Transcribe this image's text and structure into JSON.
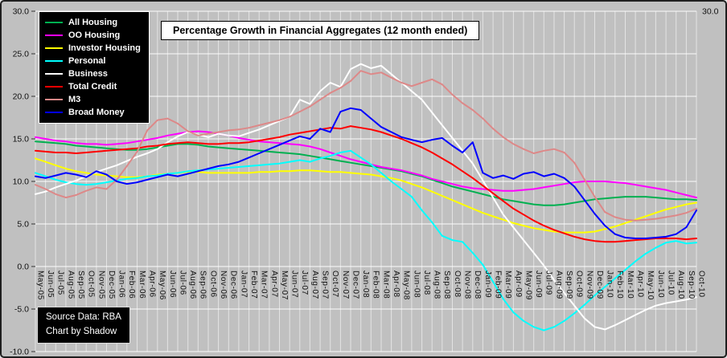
{
  "theme": {
    "background": "#c0c0c0",
    "frame_border": "#1f1f1f",
    "gridline": "#ffffff",
    "axis_text": "#111111",
    "legend_bg": "#000000",
    "legend_text": "#ffffff",
    "title_bg": "#ffffff",
    "title_text": "#000000",
    "title_border": "#000000",
    "source_bg": "#000000",
    "source_text": "#ffffff"
  },
  "source_box": {
    "line1": "Source Data: RBA",
    "line2": "Chart by Shadow"
  },
  "chart_data": {
    "type": "line",
    "title": "Percentage Growth in Financial Aggregates (12 month ended)",
    "ylabel": "",
    "xlabel": "",
    "ylim": [
      -10,
      30
    ],
    "ytick_values": [
      30,
      25,
      20,
      15,
      10,
      5,
      0,
      -5,
      -10
    ],
    "ytick_labels": [
      "30.0",
      "25.0",
      "20.0",
      "15.0",
      "10.0",
      "5.0",
      "0.0",
      "-5.0",
      "-10.0"
    ],
    "right_axis_top_label": "30.0",
    "grid": true,
    "legend_position": "top-left",
    "x": [
      "May-05",
      "Jun-05",
      "Jul-05",
      "Aug-05",
      "Sep-05",
      "Oct-05",
      "Nov-05",
      "Dec-05",
      "Jan-06",
      "Feb-06",
      "Mar-06",
      "Apr-06",
      "May-06",
      "Jun-06",
      "Jul-06",
      "Aug-06",
      "Sep-06",
      "Oct-06",
      "Nov-06",
      "Dec-06",
      "Jan-07",
      "Feb-07",
      "Mar-07",
      "Apr-07",
      "May-07",
      "Jun-07",
      "Jul-07",
      "Aug-07",
      "Sep-07",
      "Oct-07",
      "Nov-07",
      "Dec-07",
      "Jan-08",
      "Feb-08",
      "Mar-08",
      "Apr-08",
      "May-08",
      "Jun-08",
      "Jul-08",
      "Aug-08",
      "Sep-08",
      "Oct-08",
      "Nov-08",
      "Dec-08",
      "Jan-09",
      "Feb-09",
      "Mar-09",
      "Apr-09",
      "May-09",
      "Jun-09",
      "Jul-09",
      "Aug-09",
      "Sep-09",
      "Oct-09",
      "Nov-09",
      "Dec-09",
      "Jan-10",
      "Feb-10",
      "Mar-10",
      "Apr-10",
      "May-10",
      "Jun-10",
      "Jul-10",
      "Aug-10",
      "Sep-10",
      "Oct-10"
    ],
    "series": [
      {
        "name": "All Housing",
        "color": "#00b050",
        "values": [
          14.7,
          14.6,
          14.5,
          14.4,
          14.2,
          14.1,
          14.0,
          13.9,
          13.8,
          13.7,
          13.7,
          13.8,
          14.0,
          14.2,
          14.4,
          14.4,
          14.3,
          14.1,
          14.0,
          13.9,
          13.8,
          13.7,
          13.6,
          13.5,
          13.4,
          13.3,
          13.2,
          13.0,
          12.8,
          12.6,
          12.4,
          12.2,
          12.0,
          11.8,
          11.6,
          11.4,
          11.2,
          10.9,
          10.6,
          10.2,
          9.8,
          9.4,
          9.1,
          8.8,
          8.5,
          8.2,
          7.9,
          7.7,
          7.5,
          7.3,
          7.2,
          7.2,
          7.3,
          7.5,
          7.7,
          7.9,
          8.0,
          8.1,
          8.2,
          8.2,
          8.2,
          8.1,
          8.0,
          7.9,
          7.9,
          7.8
        ]
      },
      {
        "name": "OO Housing",
        "color": "#ff00ff",
        "values": [
          15.2,
          15.0,
          14.8,
          14.7,
          14.5,
          14.4,
          14.4,
          14.3,
          14.4,
          14.5,
          14.7,
          14.9,
          15.1,
          15.4,
          15.6,
          15.8,
          15.9,
          15.8,
          15.6,
          15.4,
          15.1,
          14.9,
          14.7,
          14.6,
          14.5,
          14.4,
          14.3,
          14.1,
          13.8,
          13.4,
          13.0,
          12.6,
          12.3,
          12.0,
          11.7,
          11.5,
          11.3,
          11.0,
          10.7,
          10.3,
          10.0,
          9.7,
          9.4,
          9.2,
          9.1,
          9.0,
          8.9,
          8.9,
          9.0,
          9.1,
          9.3,
          9.5,
          9.7,
          9.9,
          10.0,
          10.0,
          10.0,
          9.9,
          9.8,
          9.6,
          9.4,
          9.2,
          9.0,
          8.7,
          8.4,
          8.1
        ]
      },
      {
        "name": "Investor Housing",
        "color": "#ffff00",
        "values": [
          12.7,
          12.3,
          11.9,
          11.5,
          11.2,
          11.0,
          10.8,
          10.7,
          10.6,
          10.5,
          10.5,
          10.6,
          10.8,
          10.9,
          11.0,
          11.1,
          11.1,
          11.0,
          11.0,
          11.0,
          11.0,
          11.0,
          11.1,
          11.1,
          11.2,
          11.2,
          11.3,
          11.3,
          11.2,
          11.1,
          11.1,
          11.0,
          10.9,
          10.8,
          10.6,
          10.4,
          10.1,
          9.7,
          9.3,
          8.8,
          8.3,
          7.8,
          7.3,
          6.8,
          6.3,
          5.9,
          5.5,
          5.1,
          4.8,
          4.5,
          4.3,
          4.1,
          4.0,
          4.0,
          4.0,
          4.1,
          4.4,
          4.7,
          5.1,
          5.5,
          5.9,
          6.3,
          6.7,
          7.0,
          7.3,
          7.5
        ]
      },
      {
        "name": "Personal",
        "color": "#00ffff",
        "values": [
          11.0,
          10.6,
          10.2,
          9.9,
          9.7,
          9.6,
          9.7,
          9.9,
          10.1,
          10.3,
          10.4,
          10.6,
          10.7,
          10.9,
          11.0,
          11.2,
          11.3,
          11.4,
          11.5,
          11.6,
          11.7,
          11.8,
          11.9,
          12.0,
          12.1,
          12.3,
          12.5,
          12.3,
          12.7,
          13.0,
          13.4,
          13.6,
          12.8,
          12.0,
          11.0,
          10.0,
          9.1,
          8.2,
          6.6,
          5.2,
          3.6,
          3.1,
          2.9,
          1.6,
          0.2,
          -1.8,
          -3.8,
          -5.4,
          -6.4,
          -7.1,
          -7.5,
          -7.1,
          -6.4,
          -5.5,
          -4.5,
          -3.4,
          -2.4,
          -1.4,
          -0.4,
          0.6,
          1.5,
          2.2,
          2.8,
          3.0,
          2.7,
          2.8
        ]
      },
      {
        "name": "Business",
        "color": "#ffffff",
        "values": [
          8.5,
          8.8,
          9.3,
          9.7,
          10.1,
          10.6,
          11.1,
          11.5,
          11.9,
          12.4,
          12.9,
          13.3,
          13.8,
          14.6,
          15.3,
          15.8,
          15.5,
          15.2,
          15.6,
          15.4,
          15.3,
          15.7,
          16.1,
          16.6,
          17.1,
          17.6,
          19.6,
          19.1,
          20.6,
          21.6,
          21.1,
          23.2,
          23.8,
          23.3,
          23.6,
          22.6,
          21.6,
          20.6,
          19.6,
          18.1,
          16.6,
          15.1,
          13.6,
          12.1,
          10.1,
          8.1,
          6.1,
          4.6,
          3.1,
          1.6,
          0.1,
          -1.6,
          -3.1,
          -4.6,
          -6.1,
          -7.1,
          -7.4,
          -6.9,
          -6.3,
          -5.7,
          -5.1,
          -4.6,
          -4.3,
          -4.1,
          -3.9,
          -3.6
        ]
      },
      {
        "name": "Total Credit",
        "color": "#ff0000",
        "values": [
          13.6,
          13.5,
          13.4,
          13.4,
          13.3,
          13.4,
          13.5,
          13.6,
          13.7,
          13.8,
          13.9,
          14.1,
          14.2,
          14.4,
          14.5,
          14.6,
          14.5,
          14.4,
          14.4,
          14.5,
          14.5,
          14.6,
          14.8,
          15.0,
          15.2,
          15.5,
          15.7,
          15.9,
          16.1,
          16.3,
          16.2,
          16.5,
          16.3,
          16.1,
          15.8,
          15.4,
          15.0,
          14.5,
          14.0,
          13.4,
          12.7,
          12.0,
          11.2,
          10.4,
          9.5,
          8.6,
          7.7,
          6.8,
          6.1,
          5.4,
          4.8,
          4.3,
          3.9,
          3.5,
          3.2,
          3.0,
          2.9,
          2.9,
          3.0,
          3.1,
          3.2,
          3.3,
          3.3,
          3.3,
          3.2,
          3.3
        ]
      },
      {
        "name": "M3",
        "color": "#dd8888",
        "values": [
          9.6,
          9.1,
          8.5,
          8.1,
          8.4,
          8.9,
          9.3,
          9.1,
          10.2,
          11.8,
          13.5,
          16.0,
          17.2,
          17.4,
          16.8,
          15.9,
          15.4,
          15.6,
          15.8,
          16.0,
          16.1,
          16.3,
          16.6,
          16.9,
          17.2,
          17.6,
          18.2,
          18.8,
          19.6,
          20.4,
          21.0,
          21.8,
          23.0,
          22.6,
          22.8,
          22.2,
          21.6,
          21.2,
          21.6,
          22.0,
          21.4,
          20.2,
          19.2,
          18.4,
          17.4,
          16.2,
          15.2,
          14.4,
          13.8,
          13.3,
          13.6,
          13.8,
          13.4,
          12.2,
          10.2,
          8.2,
          6.4,
          5.8,
          5.5,
          5.4,
          5.5,
          5.6,
          5.8,
          6.0,
          6.3,
          6.8
        ]
      },
      {
        "name": "Broad Money",
        "color": "#0000ff",
        "values": [
          10.6,
          10.4,
          10.7,
          11.0,
          10.8,
          10.5,
          11.2,
          10.8,
          10.0,
          9.7,
          9.9,
          10.2,
          10.5,
          10.8,
          10.6,
          10.9,
          11.2,
          11.5,
          11.8,
          12.0,
          12.3,
          12.8,
          13.3,
          13.8,
          14.3,
          14.8,
          15.3,
          15.0,
          16.2,
          15.8,
          18.2,
          18.6,
          18.4,
          17.4,
          16.4,
          15.8,
          15.2,
          14.9,
          14.6,
          14.9,
          15.1,
          14.2,
          13.4,
          14.6,
          11.0,
          10.4,
          10.7,
          10.3,
          10.9,
          11.1,
          10.6,
          10.9,
          10.4,
          9.4,
          7.8,
          6.2,
          4.8,
          3.8,
          3.4,
          3.3,
          3.3,
          3.4,
          3.5,
          3.8,
          4.6,
          6.6
        ]
      }
    ]
  }
}
